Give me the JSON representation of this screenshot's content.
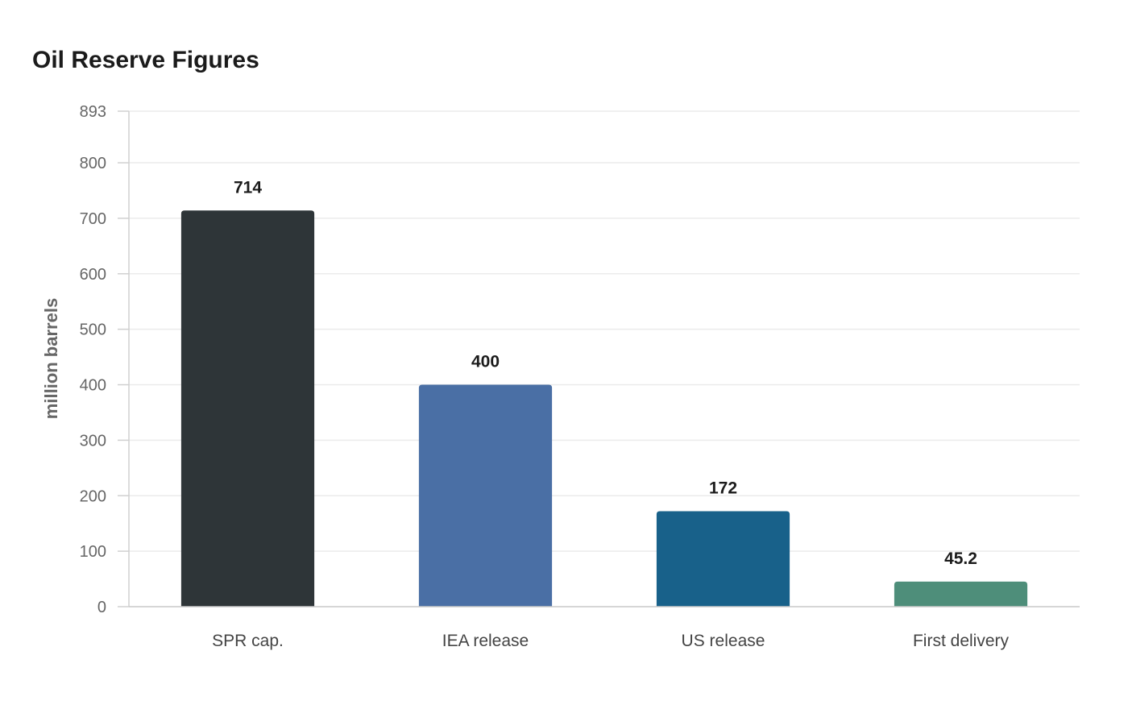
{
  "chart_data": {
    "type": "bar",
    "title": "Oil Reserve Figures",
    "xlabel": "",
    "ylabel": "million barrels",
    "categories": [
      "SPR cap.",
      "IEA release",
      "US release",
      "First delivery"
    ],
    "values": [
      714,
      400,
      172,
      45.2
    ],
    "value_labels": [
      "714",
      "400",
      "172",
      "45.2"
    ],
    "colors": [
      "#2e3538",
      "#4a6fa5",
      "#18618a",
      "#4e8e7a"
    ],
    "ylim": [
      0,
      893
    ],
    "yticks": [
      0,
      100,
      200,
      300,
      400,
      500,
      600,
      700,
      800,
      893
    ],
    "grid": true,
    "legend": "none"
  }
}
